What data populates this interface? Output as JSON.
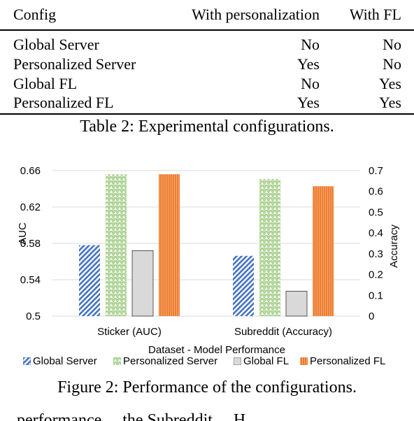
{
  "table": {
    "headers": [
      "Config",
      "With personalization",
      "With FL"
    ],
    "rows": [
      [
        "Global Server",
        "No",
        "No"
      ],
      [
        "Personalized Server",
        "Yes",
        "No"
      ],
      [
        "Global FL",
        "No",
        "Yes"
      ],
      [
        "Personalized FL",
        "Yes",
        "Yes"
      ]
    ],
    "caption": "Table 2: Experimental configurations."
  },
  "figure": {
    "caption": "Figure 2: Performance of the configurations."
  },
  "chart_data": {
    "type": "bar",
    "categories": [
      "Sticker (AUC)",
      "Subreddit (Accuracy)"
    ],
    "xlabel": "Dataset - Model Performance",
    "ylabel": "AUC",
    "y2label": "Accuracy",
    "ylim": [
      0.5,
      0.66
    ],
    "y2lim": [
      0,
      0.7
    ],
    "yticks": [
      "0.66",
      "0.62",
      "0.58",
      "0.54",
      "0.5"
    ],
    "y2ticks": [
      "0.7",
      "0.6",
      "0.5",
      "0.4",
      "0.3",
      "0.2",
      "0.1",
      "0"
    ],
    "series": [
      {
        "name": "Global Server",
        "color": "#4472c4",
        "pattern": "diagonal-hatch",
        "values": [
          0.578,
          0.29
        ]
      },
      {
        "name": "Personalized Server",
        "color": "#a9d18e",
        "pattern": "zigzag-hatch",
        "values": [
          0.656,
          0.66
        ]
      },
      {
        "name": "Global FL",
        "color": "#d9d9d9",
        "pattern": "solid",
        "values": [
          0.572,
          0.12
        ]
      },
      {
        "name": "Personalized FL",
        "color": "#ed7d31",
        "pattern": "vertical-stripes",
        "values": [
          0.656,
          0.625
        ]
      }
    ],
    "grid": true,
    "legend_position": "bottom"
  },
  "cut_text": "... performance ... the Subreddit ... H"
}
